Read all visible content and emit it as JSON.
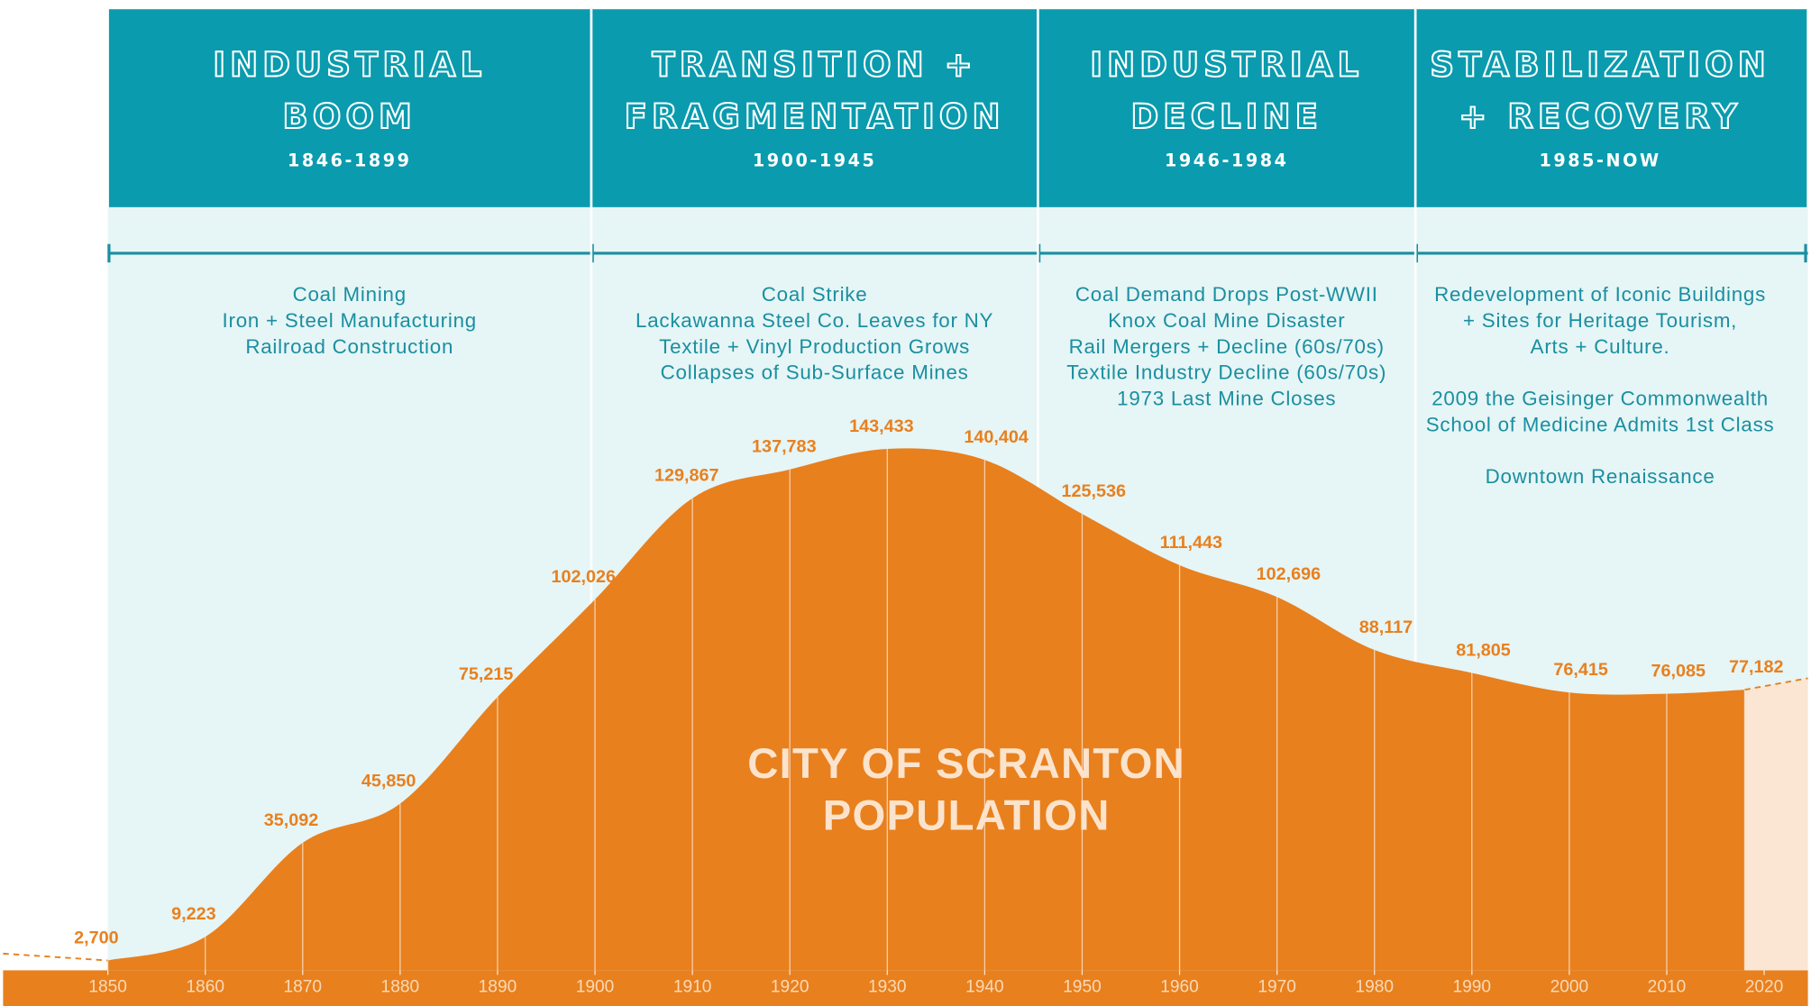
{
  "chart_data": {
    "type": "area",
    "title": [
      "CITY OF SCRANTON",
      "POPULATION"
    ],
    "color": "#E8801E",
    "x": [
      1850,
      1860,
      1870,
      1880,
      1890,
      1900,
      1910,
      1920,
      1930,
      1940,
      1950,
      1960,
      1970,
      1980,
      1990,
      2000,
      2010,
      2018
    ],
    "values": [
      2700,
      9223,
      35092,
      45850,
      75215,
      102026,
      129867,
      137783,
      143433,
      140404,
      125536,
      111443,
      102696,
      88117,
      81805,
      76415,
      76085,
      77182
    ],
    "value_labels": [
      "2,700",
      "9,223",
      "35,092",
      "45,850",
      "75,215",
      "102,026",
      "129,867",
      "137,783",
      "143,433",
      "140,404",
      "125,536",
      "111,443",
      "102,696",
      "88,117",
      "81,805",
      "76,415",
      "76,085",
      "77,182"
    ],
    "xlim": [
      1850,
      2020
    ],
    "xticks": [
      1850,
      1860,
      1870,
      1880,
      1890,
      1900,
      1910,
      1920,
      1930,
      1940,
      1950,
      1960,
      1970,
      1980,
      1990,
      2000,
      2010,
      2020
    ],
    "ylim": [
      0,
      150000
    ],
    "eras": [
      {
        "name": [
          "INDUSTRIAL",
          "BOOM"
        ],
        "years": "1846-1899",
        "events": [
          [
            "Coal Mining",
            "Iron + Steel Manufacturing",
            "Railroad Construction"
          ]
        ]
      },
      {
        "name": [
          "TRANSITION +",
          "FRAGMENTATION"
        ],
        "years": "1900-1945",
        "events": [
          [
            "Coal Strike",
            "Lackawanna Steel Co. Leaves for NY",
            "Textile + Vinyl Production Grows",
            "Collapses of Sub-Surface Mines"
          ]
        ]
      },
      {
        "name": [
          "INDUSTRIAL",
          "DECLINE"
        ],
        "years": "1946-1984",
        "events": [
          [
            "Coal Demand Drops Post-WWII",
            "Knox Coal Mine Disaster",
            "Rail Mergers + Decline (60s/70s)",
            "Textile Industry Decline (60s/70s)",
            "1973 Last Mine Closes"
          ]
        ]
      },
      {
        "name": [
          "STABILIZATION",
          "+ RECOVERY"
        ],
        "years": "1985-NOW",
        "events": [
          [
            "Redevelopment of Iconic Buildings",
            "+ Sites for Heritage Tourism,",
            "Arts + Culture."
          ],
          [
            "2009 the Geisinger Commonwealth",
            "School of Medicine Admits 1st Class"
          ],
          [
            "Downtown Renaissance"
          ]
        ]
      }
    ]
  }
}
